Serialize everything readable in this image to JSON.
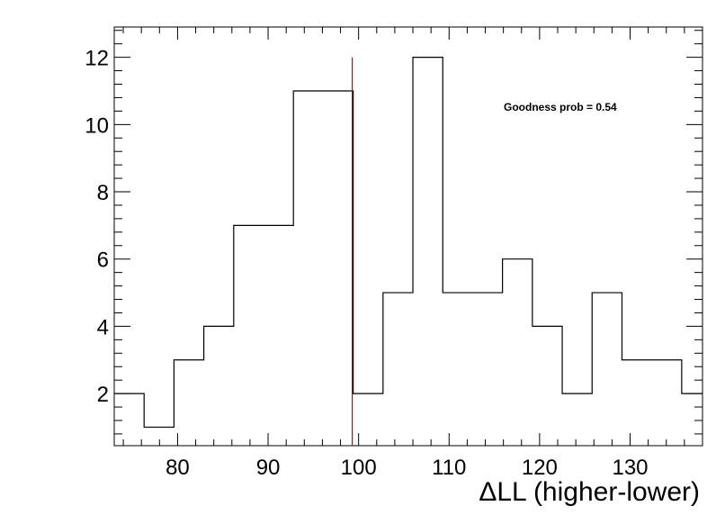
{
  "chart_data": {
    "type": "histogram",
    "title": "",
    "xlabel": "ΔLL (higher-lower)",
    "ylabel": "",
    "xlim": [
      73,
      138
    ],
    "ylim": [
      0.45,
      12.9
    ],
    "x_ticks": [
      80,
      90,
      100,
      110,
      120,
      130
    ],
    "y_ticks": [
      2,
      4,
      6,
      8,
      10,
      12
    ],
    "bin_edges": [
      73.0,
      76.3,
      79.6,
      82.9,
      86.2,
      89.5,
      92.8,
      96.1,
      99.4,
      102.7,
      106.0,
      109.3,
      112.6,
      115.9,
      119.2,
      122.5,
      125.8,
      129.1,
      132.4,
      135.7,
      139.0
    ],
    "counts": [
      2,
      1,
      3,
      4,
      7,
      7,
      11,
      11,
      2,
      5,
      12,
      5,
      5,
      6,
      4,
      2,
      5,
      3,
      3,
      2
    ],
    "marker_line": {
      "x": 99.3,
      "color": "#cc0000"
    },
    "annotation": "Goodness prob = 0.54",
    "grid": false,
    "line_color": "#000000"
  }
}
